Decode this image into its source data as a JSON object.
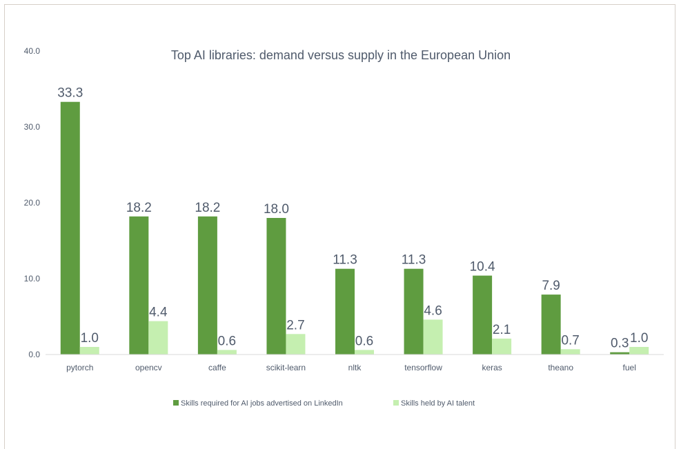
{
  "chart_data": {
    "type": "bar",
    "title": "Top AI libraries: demand versus supply in the European Union",
    "categories": [
      "pytorch",
      "opencv",
      "caffe",
      "scikit-learn",
      "nltk",
      "tensorflow",
      "keras",
      "theano",
      "fuel"
    ],
    "series": [
      {
        "name": "Skills required for AI jobs advertised on LinkedIn",
        "color": "#5f9c40",
        "values": [
          33.3,
          18.2,
          18.2,
          18.0,
          11.3,
          11.3,
          10.4,
          7.9,
          0.3
        ],
        "labels": [
          "33.3",
          "18.2",
          "18.2",
          "18.0",
          "11.3",
          "11.3",
          "10.4",
          "7.9",
          "0.3"
        ]
      },
      {
        "name": "Skills held by AI talent",
        "color": "#c5efb0",
        "values": [
          1.0,
          4.4,
          0.6,
          2.7,
          0.6,
          4.6,
          2.1,
          0.7,
          1.0
        ],
        "labels": [
          "1.0",
          "4.4",
          "0.6",
          "2.7",
          "0.6",
          "4.6",
          "2.1",
          "0.7",
          "1.0"
        ]
      }
    ],
    "ylim": [
      0,
      40
    ],
    "yticks": [
      "0.0",
      "10.0",
      "20.0",
      "30.0",
      "40.0"
    ],
    "ytick_values": [
      0,
      10,
      20,
      30,
      40
    ],
    "grid": false,
    "legend": "bottom-center"
  }
}
